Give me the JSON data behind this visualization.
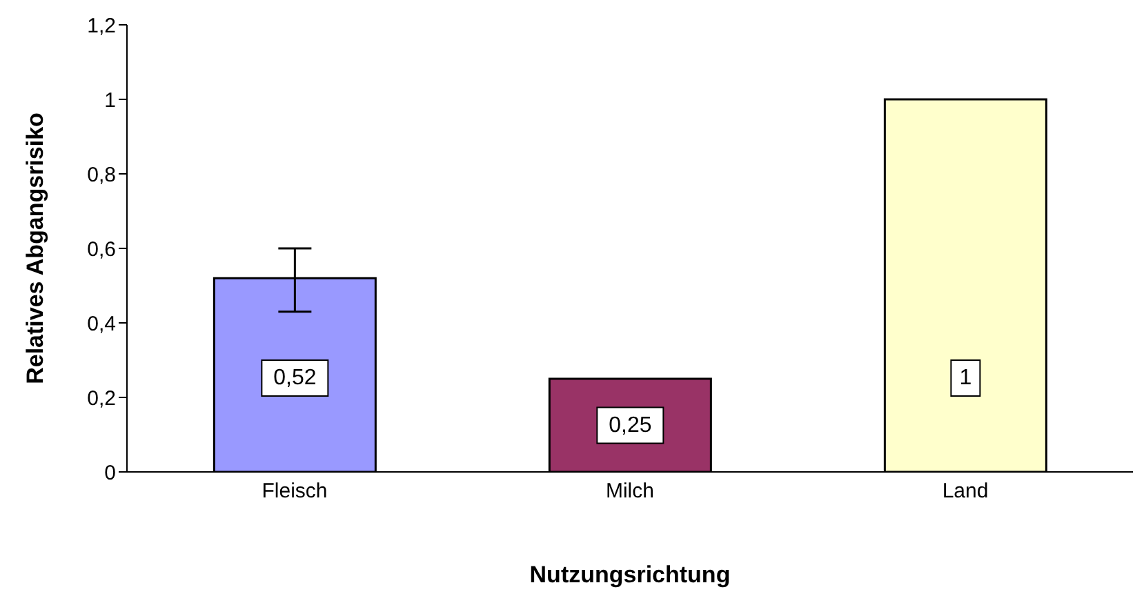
{
  "chart_data": {
    "type": "bar",
    "xlabel": "Nutzungsrichtung",
    "ylabel": "Relatives Abgangsrisiko",
    "categories": [
      "Fleisch",
      "Milch",
      "Land"
    ],
    "values": [
      0.52,
      0.25,
      1
    ],
    "colors": [
      "#9999ff",
      "#993366",
      "#ffffcc"
    ],
    "errors": [
      [
        0.43,
        0.6
      ],
      null,
      null
    ],
    "value_labels": [
      "0,52",
      "0,25",
      "1"
    ],
    "ylim": [
      0,
      1.2
    ],
    "yticks": [
      {
        "value": 0,
        "label": "0"
      },
      {
        "value": 0.2,
        "label": "0,2"
      },
      {
        "value": 0.4,
        "label": "0,4"
      },
      {
        "value": 0.6,
        "label": "0,6"
      },
      {
        "value": 0.8,
        "label": "0,8"
      },
      {
        "value": 1,
        "label": "1"
      },
      {
        "value": 1.2,
        "label": "1,2"
      }
    ],
    "grid": false,
    "legend": false
  }
}
